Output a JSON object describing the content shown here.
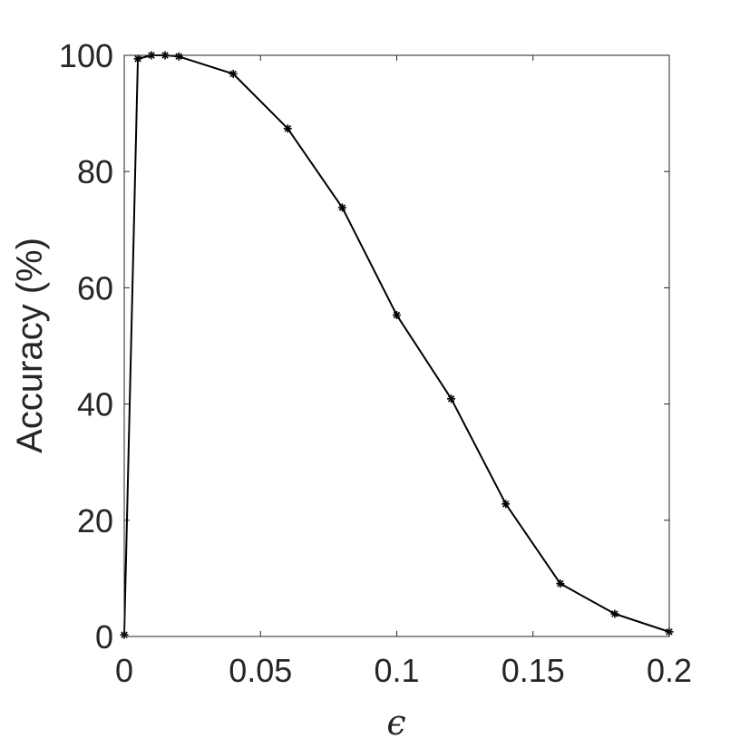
{
  "chart_data": {
    "type": "line",
    "title": "",
    "xlabel": "ϵ",
    "ylabel": "Accuracy (%)",
    "xlim": [
      0,
      0.2
    ],
    "ylim": [
      0,
      100
    ],
    "xticks": [
      0,
      0.05,
      0.1,
      0.15,
      0.2
    ],
    "xtick_labels": [
      "0",
      "0.05",
      "0.1",
      "0.15",
      "0.2"
    ],
    "yticks": [
      0,
      20,
      40,
      60,
      80,
      100
    ],
    "ytick_labels": [
      "0",
      "20",
      "40",
      "60",
      "80",
      "100"
    ],
    "grid": false,
    "box": true,
    "series": [
      {
        "color": "#000000",
        "marker": "asterisk",
        "x": [
          0,
          0.005,
          0.01,
          0.015,
          0.02,
          0.04,
          0.06,
          0.08,
          0.1,
          0.12,
          0.14,
          0.16,
          0.18,
          0.2
        ],
        "y": [
          0.3,
          99.4,
          100,
          100,
          99.8,
          96.8,
          87.4,
          73.8,
          55.3,
          40.9,
          22.8,
          9.1,
          3.9,
          0.8
        ]
      }
    ]
  }
}
